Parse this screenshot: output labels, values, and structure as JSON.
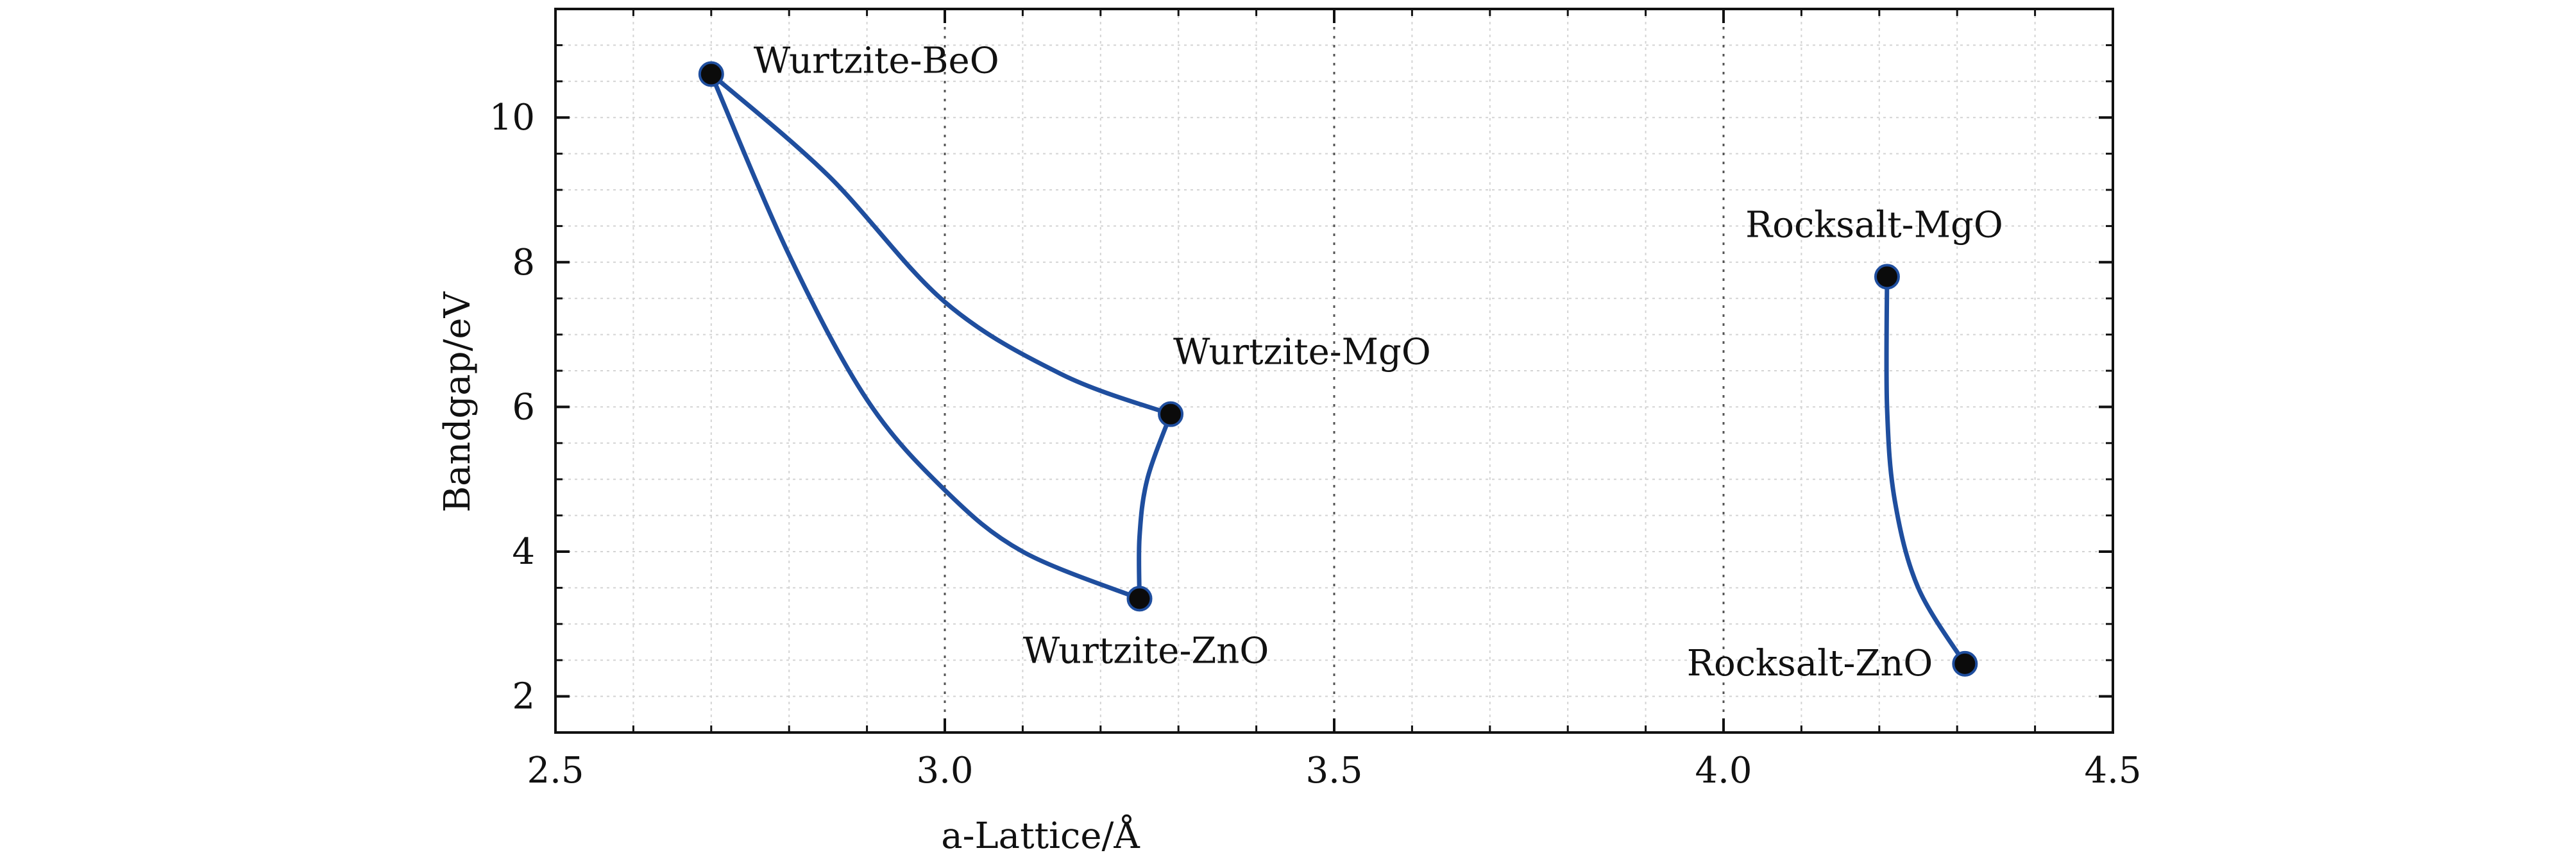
{
  "chart_data": {
    "type": "scatter",
    "title": "",
    "xlabel": "a-Lattice/Å",
    "ylabel": "Bandgap/eV",
    "xlim": [
      2.5,
      4.5
    ],
    "ylim": [
      1.5,
      11.5
    ],
    "xticks": [
      2.5,
      3.0,
      3.5,
      4.0,
      4.5
    ],
    "xtick_labels": [
      "2.5",
      "3.0",
      "3.5",
      "4.0",
      "4.5"
    ],
    "yticks": [
      2,
      4,
      6,
      8,
      10
    ],
    "ytick_labels": [
      "2",
      "4",
      "6",
      "8",
      "10"
    ],
    "grid": "major vertical dotted lines at 3.0, 3.5, 4.0; minor dotted grid",
    "points": [
      {
        "label": "Wurtzite-BeO",
        "x": 2.7,
        "y": 10.6
      },
      {
        "label": "Wurtzite-MgO",
        "x": 3.29,
        "y": 5.9
      },
      {
        "label": "Wurtzite-ZnO",
        "x": 3.25,
        "y": 3.35
      },
      {
        "label": "Rocksalt-MgO",
        "x": 4.21,
        "y": 7.8
      },
      {
        "label": "Rocksalt-ZnO",
        "x": 4.31,
        "y": 2.45
      }
    ],
    "curves": [
      {
        "from": "Wurtzite-BeO",
        "to": "Wurtzite-MgO",
        "path": [
          [
            2.7,
            10.6
          ],
          [
            2.85,
            9.2
          ],
          [
            3.0,
            7.45
          ],
          [
            3.15,
            6.45
          ],
          [
            3.29,
            5.9
          ]
        ]
      },
      {
        "from": "Wurtzite-BeO",
        "to": "Wurtzite-ZnO",
        "path": [
          [
            2.7,
            10.6
          ],
          [
            2.8,
            8.1
          ],
          [
            2.9,
            6.1
          ],
          [
            3.0,
            4.85
          ],
          [
            3.1,
            4.0
          ],
          [
            3.25,
            3.35
          ]
        ]
      },
      {
        "from": "Wurtzite-MgO",
        "to": "Wurtzite-ZnO",
        "path": [
          [
            3.29,
            5.9
          ],
          [
            3.26,
            5.0
          ],
          [
            3.25,
            4.2
          ],
          [
            3.25,
            3.35
          ]
        ]
      },
      {
        "from": "Rocksalt-MgO",
        "to": "Rocksalt-ZnO",
        "path": [
          [
            4.21,
            7.8
          ],
          [
            4.21,
            6.0
          ],
          [
            4.22,
            4.7
          ],
          [
            4.25,
            3.5
          ],
          [
            4.31,
            2.45
          ]
        ]
      }
    ]
  }
}
